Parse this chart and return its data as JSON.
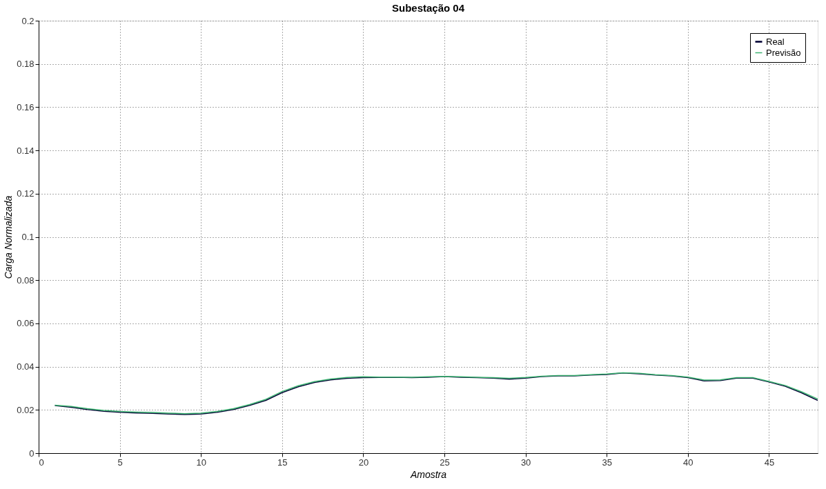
{
  "chart_data": {
    "type": "line",
    "title": "Subestação 04",
    "xlabel": "Amostra",
    "ylabel": "Carga Normalizada",
    "x": [
      1,
      2,
      3,
      4,
      5,
      6,
      7,
      8,
      9,
      10,
      11,
      12,
      13,
      14,
      15,
      16,
      17,
      18,
      19,
      20,
      21,
      22,
      23,
      24,
      25,
      26,
      27,
      28,
      29,
      30,
      31,
      32,
      33,
      34,
      35,
      36,
      37,
      38,
      39,
      40,
      41,
      42,
      43,
      44,
      45,
      46,
      47,
      48
    ],
    "series": [
      {
        "name": "Real",
        "color": "#000033",
        "values": [
          0.022,
          0.0212,
          0.0202,
          0.0194,
          0.0189,
          0.0186,
          0.0184,
          0.0181,
          0.0179,
          0.0181,
          0.0189,
          0.0202,
          0.0221,
          0.0244,
          0.028,
          0.0307,
          0.0327,
          0.0339,
          0.0346,
          0.0349,
          0.035,
          0.0351,
          0.0349,
          0.0351,
          0.0354,
          0.0351,
          0.0349,
          0.0347,
          0.0342,
          0.0347,
          0.0354,
          0.0357,
          0.0357,
          0.0361,
          0.0364,
          0.0371,
          0.0367,
          0.0361,
          0.0357,
          0.0349,
          0.0334,
          0.0336,
          0.0347,
          0.0347,
          0.0329,
          0.0309,
          0.0279,
          0.0244
        ]
      },
      {
        "name": "Previsão",
        "color": "#3cb371",
        "values": [
          0.0222,
          0.0216,
          0.0206,
          0.0198,
          0.0193,
          0.019,
          0.0188,
          0.0185,
          0.0183,
          0.0185,
          0.0193,
          0.0206,
          0.0225,
          0.0249,
          0.0285,
          0.0312,
          0.0331,
          0.0343,
          0.035,
          0.0353,
          0.0352,
          0.0352,
          0.0351,
          0.0353,
          0.0355,
          0.0353,
          0.0351,
          0.0349,
          0.0346,
          0.035,
          0.0356,
          0.0359,
          0.0359,
          0.0363,
          0.0366,
          0.0372,
          0.0369,
          0.0363,
          0.0359,
          0.0352,
          0.0338,
          0.0339,
          0.0349,
          0.0349,
          0.0332,
          0.0313,
          0.0284,
          0.025
        ]
      }
    ],
    "xlim": [
      0,
      48
    ],
    "xticks": [
      0,
      5,
      10,
      15,
      20,
      25,
      30,
      35,
      40,
      45
    ],
    "ylim": [
      0,
      0.2
    ],
    "yticks": [
      0,
      0.02,
      0.04,
      0.06,
      0.08,
      0.1,
      0.12,
      0.14,
      0.16,
      0.18,
      0.2
    ],
    "grid": true,
    "legend": "top right",
    "line_style": "solid",
    "marker": "none"
  }
}
